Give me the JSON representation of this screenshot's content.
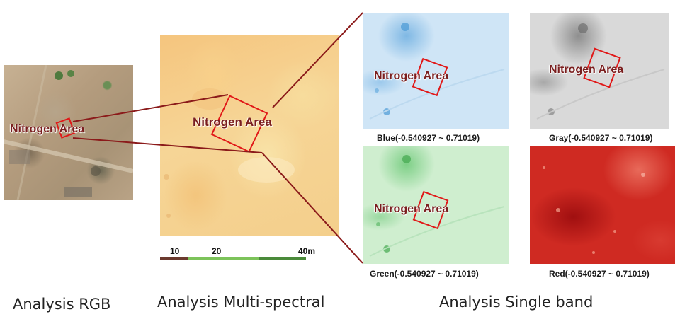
{
  "annotation": {
    "nitrogen_label": "Nitrogen Area"
  },
  "panels": {
    "rgb": {
      "caption": "Analysis RGB"
    },
    "multispectral": {
      "caption": "Analysis Multi-spectral"
    },
    "single_band": {
      "caption": "Analysis Single band"
    }
  },
  "bands": [
    {
      "name": "Blue",
      "label": "Blue(-0.540927 ~ 0.71019)"
    },
    {
      "name": "Gray",
      "label": "Gray(-0.540927 ~ 0.71019)"
    },
    {
      "name": "Green",
      "label": "Green(-0.540927 ~ 0.71019)"
    },
    {
      "name": "Red",
      "label": "Red(-0.540927 ~ 0.71019)"
    }
  ],
  "scale_bar": {
    "ticks": [
      "10",
      "20",
      "40m"
    ]
  },
  "colors": {
    "roi": "#e11818",
    "connector": "#8b1a1a",
    "label_text": "#7a1e1e"
  }
}
